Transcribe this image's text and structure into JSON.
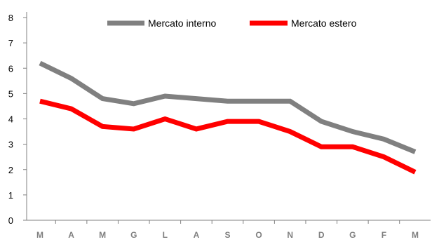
{
  "chart_data": {
    "type": "line",
    "categories": [
      "M",
      "A",
      "M",
      "G",
      "L",
      "A",
      "S",
      "O",
      "N",
      "D",
      "G",
      "F",
      "M"
    ],
    "series": [
      {
        "name": "Mercato interno",
        "color": "#808080",
        "values": [
          6.2,
          5.6,
          4.8,
          4.6,
          4.9,
          4.8,
          4.7,
          4.7,
          4.7,
          3.9,
          3.5,
          3.2,
          2.7
        ]
      },
      {
        "name": "Mercato estero",
        "color": "#ff0000",
        "values": [
          4.7,
          4.4,
          3.7,
          3.6,
          4.0,
          3.6,
          3.9,
          3.9,
          3.5,
          2.9,
          2.9,
          2.5,
          1.9
        ]
      }
    ],
    "ylim": [
      0,
      8
    ],
    "yticks": [
      "0",
      "1",
      "2",
      "3",
      "4",
      "5",
      "6",
      "7",
      "8"
    ],
    "grid": false,
    "legend_position": "top-center"
  }
}
